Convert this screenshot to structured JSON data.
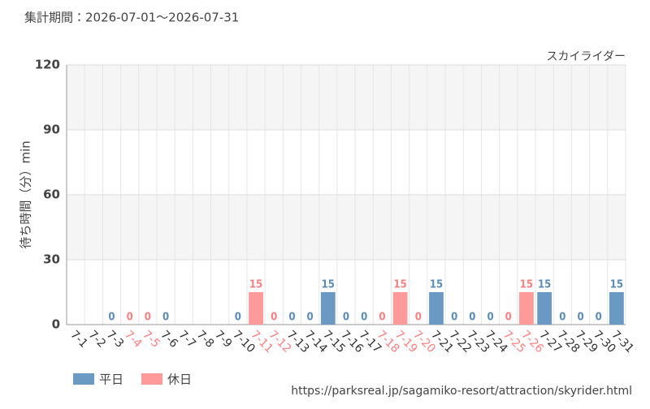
{
  "chart_data": {
    "type": "bar",
    "title": "集計期間：2026-07-01～2026-07-31",
    "subtitle": "スカイライダー",
    "y_label": "待ち時間（分）min",
    "source": "https://parksreal.jp/sagamiko-resort/attraction/skyrider.html",
    "categories": [
      "7-1",
      "7-2",
      "7-3",
      "7-4",
      "7-5",
      "7-6",
      "7-7",
      "7-8",
      "7-9",
      "7-10",
      "7-11",
      "7-12",
      "7-13",
      "7-14",
      "7-15",
      "7-16",
      "7-17",
      "7-18",
      "7-19",
      "7-20",
      "7-21",
      "7-22",
      "7-23",
      "7-24",
      "7-25",
      "7-26",
      "7-27",
      "7-28",
      "7-29",
      "7-30",
      "7-31"
    ],
    "series": [
      {
        "name": "平日",
        "color": "#6a9ac4",
        "label_color": "#5b8bb8",
        "values": [
          null,
          null,
          0,
          null,
          null,
          0,
          null,
          null,
          null,
          0,
          null,
          null,
          0,
          0,
          15,
          0,
          0,
          null,
          null,
          null,
          15,
          0,
          0,
          0,
          null,
          null,
          15,
          0,
          0,
          0,
          15
        ]
      },
      {
        "name": "休日",
        "color": "#ff9a9a",
        "label_color": "#ff8080",
        "values": [
          null,
          null,
          null,
          0,
          0,
          null,
          null,
          null,
          null,
          null,
          15,
          0,
          null,
          null,
          null,
          null,
          null,
          0,
          15,
          0,
          null,
          null,
          null,
          null,
          0,
          15,
          null,
          null,
          null,
          null,
          null
        ]
      }
    ],
    "ylim": [
      0,
      120
    ],
    "yticks": [
      0,
      30,
      60,
      90,
      120
    ],
    "grid": true,
    "legend": "bottom-left"
  }
}
